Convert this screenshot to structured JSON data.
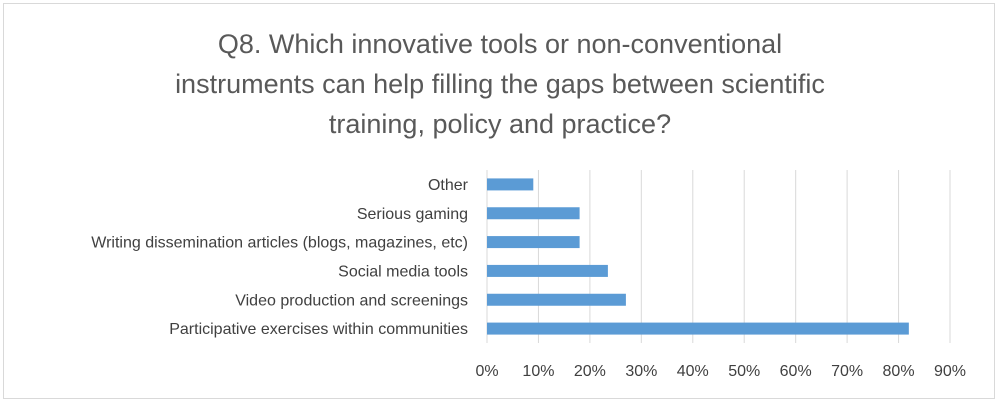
{
  "chart_data": {
    "type": "bar",
    "orientation": "horizontal",
    "title_lines": [
      "Q8. Which innovative tools or non-conventional",
      "instruments can help filling the gaps between scientific",
      "training, policy and practice?"
    ],
    "categories": [
      "Participative exercises within communities",
      "Video production and screenings",
      "Social media tools",
      "Writing dissemination articles (blogs, magazines, etc)",
      "Serious gaming",
      "Other"
    ],
    "values": [
      0.82,
      0.27,
      0.235,
      0.18,
      0.18,
      0.09
    ],
    "xlim": [
      0,
      0.9
    ],
    "xticks": [
      "0%",
      "10%",
      "20%",
      "30%",
      "40%",
      "50%",
      "60%",
      "70%",
      "80%",
      "90%"
    ],
    "grid": true,
    "legend": "none",
    "bar_color": "#5b9bd5",
    "grid_color": "#d9d9d9"
  }
}
